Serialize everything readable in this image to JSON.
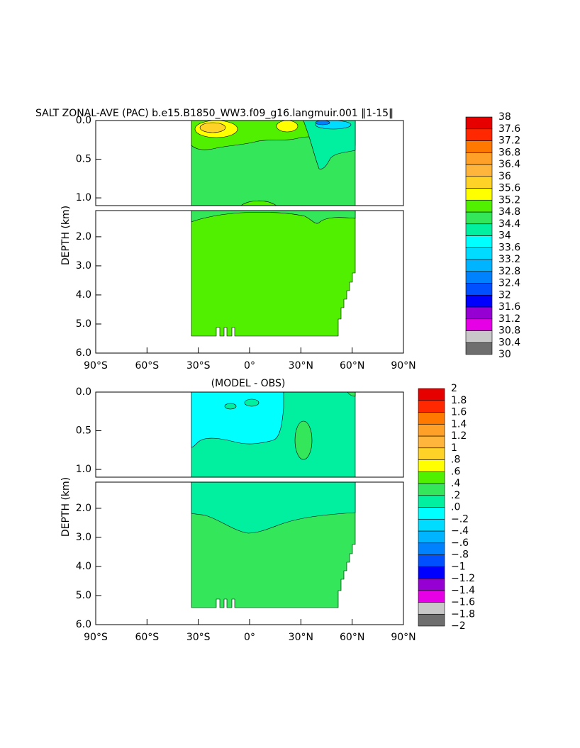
{
  "chart_data": [
    {
      "type": "contour",
      "title": "SALT ZONAL-AVE (PAC) b.e15.B1850_WW3.f09_g16.langmuir.001 ‖1-15‖",
      "ylabel": "DEPTH (km)",
      "xlim": [
        -90,
        90
      ],
      "xticks": [
        {
          "value": -90,
          "label": "90°S"
        },
        {
          "value": -60,
          "label": "60°S"
        },
        {
          "value": -30,
          "label": "30°S"
        },
        {
          "value": 0,
          "label": "0°"
        },
        {
          "value": 30,
          "label": "30°N"
        },
        {
          "value": 60,
          "label": "60°N"
        },
        {
          "value": 90,
          "label": "90°N"
        }
      ],
      "ylim": [
        0,
        6
      ],
      "y_break": 1.1,
      "y_inverted": true,
      "yticks": [
        {
          "value": 0,
          "label": "0.0"
        },
        0.5,
        {
          "value": 1,
          "label": "1.0"
        },
        {
          "value": 2,
          "label": "2.0"
        },
        {
          "value": 3,
          "label": "3.0"
        },
        {
          "value": 4,
          "label": "4.0"
        },
        {
          "value": 5,
          "label": "5.0"
        },
        {
          "value": 6,
          "label": "6.0"
        }
      ],
      "colorbar": {
        "levels": [
          30,
          30.4,
          30.8,
          31.2,
          31.6,
          32,
          32.4,
          32.8,
          33.2,
          33.6,
          34,
          34.4,
          34.8,
          35.2,
          35.6,
          36,
          36.4,
          36.8,
          37.2,
          37.6,
          38
        ],
        "colors": [
          "#6e6e6e",
          "#c8c8c8",
          "#e600e6",
          "#9600d2",
          "#0000ff",
          "#0050ff",
          "#0082ff",
          "#00b4ff",
          "#00dcff",
          "#00ffff",
          "#00f0a0",
          "#33e65a",
          "#50f000",
          "#ffff00",
          "#ffd228",
          "#ffb43c",
          "#ffa028",
          "#ff7800",
          "#ff2800",
          "#e60000",
          "#c80000"
        ]
      }
    },
    {
      "type": "contour",
      "title": "(MODEL - OBS)",
      "ylabel": "DEPTH (km)",
      "xlim": [
        -90,
        90
      ],
      "xticks": [
        {
          "value": -90,
          "label": "90°S"
        },
        {
          "value": -60,
          "label": "60°S"
        },
        {
          "value": -30,
          "label": "30°S"
        },
        {
          "value": 0,
          "label": "0°"
        },
        {
          "value": 30,
          "label": "30°N"
        },
        {
          "value": 60,
          "label": "60°N"
        },
        {
          "value": 90,
          "label": "90°N"
        }
      ],
      "ylim": [
        0,
        6
      ],
      "y_break": 1.1,
      "y_inverted": true,
      "yticks": [
        {
          "value": 0,
          "label": "0.0"
        },
        0.5,
        {
          "value": 1,
          "label": "1.0"
        },
        {
          "value": 2,
          "label": "2.0"
        },
        {
          "value": 3,
          "label": "3.0"
        },
        {
          "value": 4,
          "label": "4.0"
        },
        {
          "value": 5,
          "label": "5.0"
        },
        {
          "value": 6,
          "label": "6.0"
        }
      ],
      "colorbar": {
        "levels": [
          {
            "value": -2,
            "label": "−2"
          },
          {
            "value": -1.8,
            "label": "−1.8"
          },
          {
            "value": -1.6,
            "label": "−1.6"
          },
          {
            "value": -1.4,
            "label": "−1.4"
          },
          {
            "value": -1.2,
            "label": "−1.2"
          },
          {
            "value": -1,
            "label": "−1"
          },
          {
            "value": -0.8,
            "label": "−.8"
          },
          {
            "value": -0.6,
            "label": "−.6"
          },
          {
            "value": -0.4,
            "label": "−.4"
          },
          {
            "value": -0.2,
            "label": "−.2"
          },
          {
            "value": 0,
            "label": ".0"
          },
          {
            "value": 0.2,
            "label": ".2"
          },
          {
            "value": 0.4,
            "label": ".4"
          },
          {
            "value": 0.6,
            "label": ".6"
          },
          {
            "value": 0.8,
            "label": ".8"
          },
          1,
          1.2,
          1.4,
          1.6,
          1.8,
          2
        ],
        "colors": [
          "#6e6e6e",
          "#c8c8c8",
          "#e600e6",
          "#9600d2",
          "#0000ff",
          "#0050ff",
          "#0082ff",
          "#00b4ff",
          "#00dcff",
          "#00ffff",
          "#00f0a0",
          "#33e65a",
          "#50f000",
          "#ffff00",
          "#ffd228",
          "#ffb43c",
          "#ffa028",
          "#ff7800",
          "#ff2800",
          "#e60000",
          "#c80000"
        ]
      }
    }
  ]
}
